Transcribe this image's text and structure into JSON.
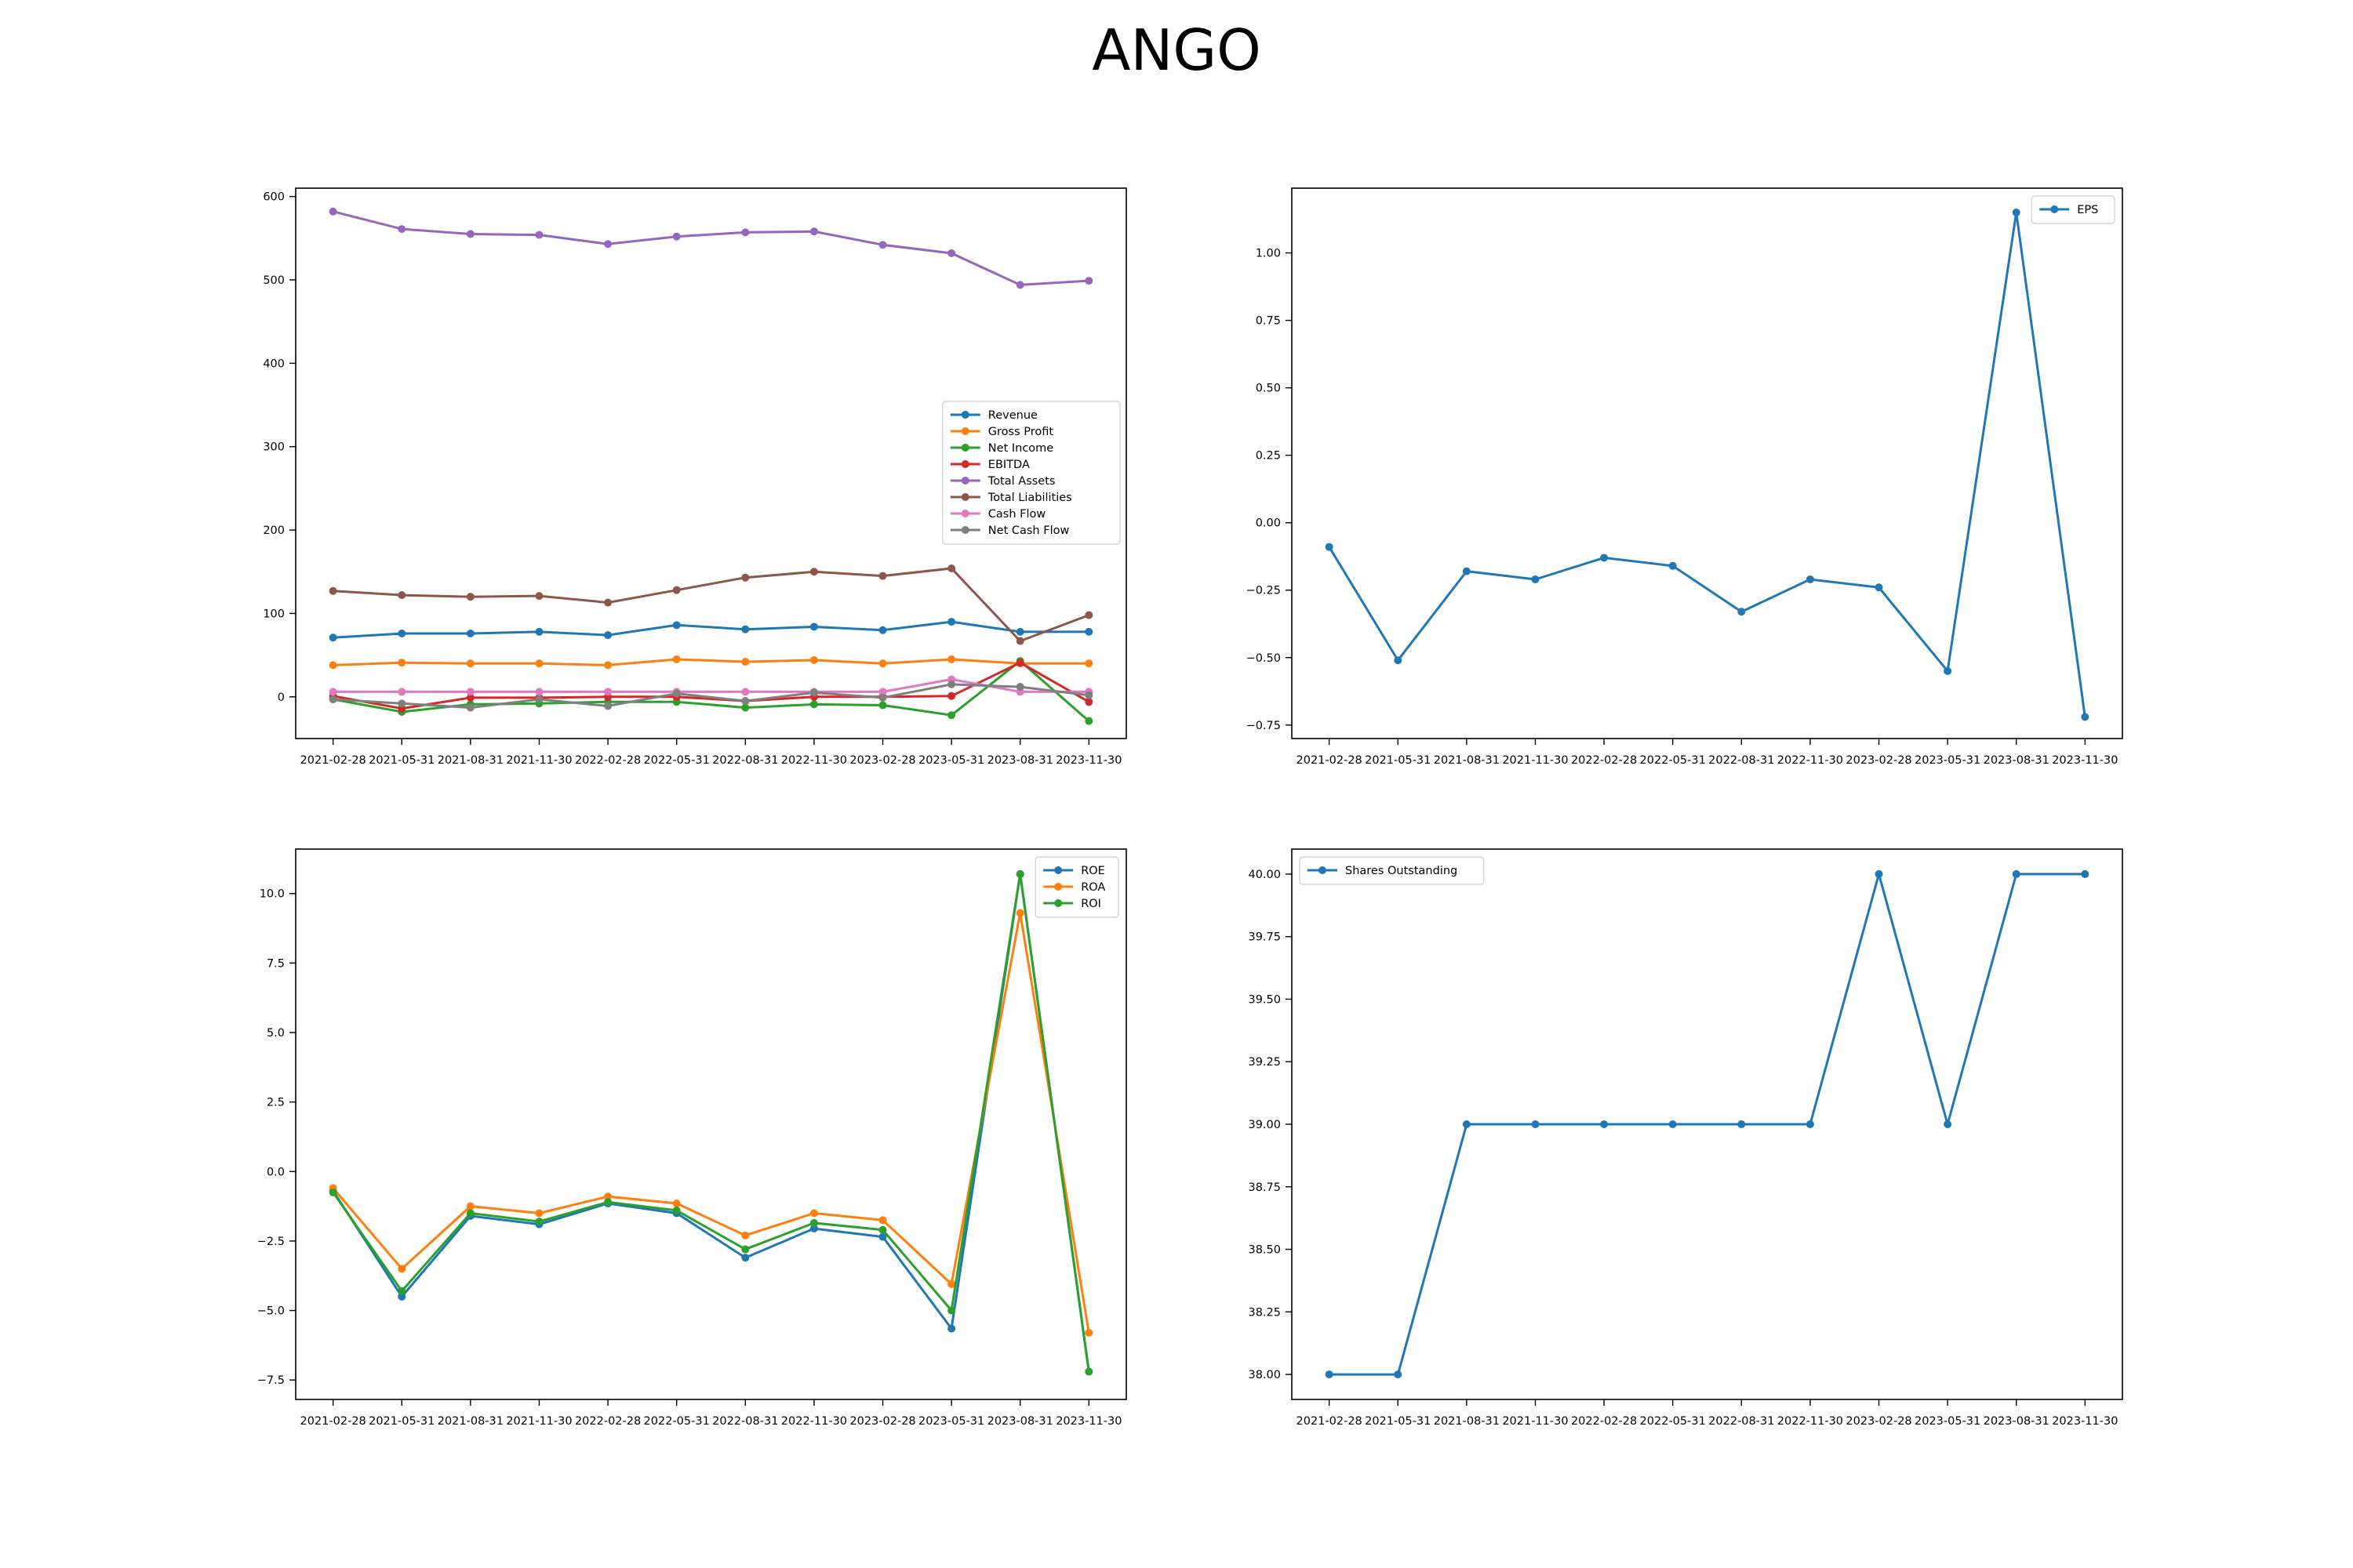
{
  "figure": {
    "title": "ANGO"
  },
  "chart_data": [
    {
      "type": "line",
      "x": [
        "2021-02-28",
        "2021-05-31",
        "2021-08-31",
        "2021-11-30",
        "2022-02-28",
        "2022-05-31",
        "2022-08-31",
        "2022-11-30",
        "2023-02-28",
        "2023-05-31",
        "2023-08-31",
        "2023-11-30"
      ],
      "ylim": [
        -50,
        610
      ],
      "yticks": [
        0,
        100,
        200,
        300,
        400,
        500,
        600
      ],
      "ytick_labels": [
        "0",
        "100",
        "200",
        "300",
        "400",
        "500",
        "600"
      ],
      "legend_position": "center-right",
      "series": [
        {
          "name": "Revenue",
          "color": "#1f77b4",
          "values": [
            71,
            76,
            76,
            78,
            74,
            86,
            81,
            84,
            80,
            90,
            78,
            78
          ]
        },
        {
          "name": "Gross Profit",
          "color": "#ff7f0e",
          "values": [
            38,
            41,
            40,
            40,
            38,
            45,
            42,
            44,
            40,
            45,
            40,
            40
          ]
        },
        {
          "name": "Net Income",
          "color": "#2ca02c",
          "values": [
            -3,
            -18,
            -9,
            -8,
            -6,
            -6,
            -13,
            -9,
            -10,
            -22,
            43,
            -29
          ]
        },
        {
          "name": "EBITDA",
          "color": "#d62728",
          "values": [
            1,
            -14,
            -1,
            -1,
            0,
            0,
            -5,
            0,
            0,
            1,
            41,
            -6
          ]
        },
        {
          "name": "Total Assets",
          "color": "#9467bd",
          "values": [
            582,
            561,
            555,
            554,
            543,
            552,
            557,
            558,
            542,
            532,
            494,
            499
          ]
        },
        {
          "name": "Total Liabilities",
          "color": "#8c564b",
          "values": [
            127,
            122,
            120,
            121,
            113,
            128,
            143,
            150,
            145,
            154,
            67,
            98
          ]
        },
        {
          "name": "Cash Flow",
          "color": "#e377c2",
          "values": [
            6,
            6,
            6,
            6,
            6,
            6,
            6,
            6,
            6,
            21,
            6,
            6
          ]
        },
        {
          "name": "Net Cash Flow",
          "color": "#7f7f7f",
          "values": [
            -3,
            -8,
            -13,
            -3,
            -11,
            4,
            -5,
            5,
            -1,
            15,
            12,
            2
          ]
        }
      ]
    },
    {
      "type": "line",
      "x": [
        "2021-02-28",
        "2021-05-31",
        "2021-08-31",
        "2021-11-30",
        "2022-02-28",
        "2022-05-31",
        "2022-08-31",
        "2022-11-30",
        "2023-02-28",
        "2023-05-31",
        "2023-08-31",
        "2023-11-30"
      ],
      "ylim": [
        -0.8,
        1.24
      ],
      "yticks": [
        -0.75,
        -0.5,
        -0.25,
        0,
        0.25,
        0.5,
        0.75,
        1.0
      ],
      "ytick_labels": [
        "−0.75",
        "−0.50",
        "−0.25",
        "0.00",
        "0.25",
        "0.50",
        "0.75",
        "1.00"
      ],
      "legend_position": "top-right",
      "series": [
        {
          "name": "EPS",
          "color": "#1f77b4",
          "values": [
            -0.09,
            -0.51,
            -0.18,
            -0.21,
            -0.13,
            -0.16,
            -0.33,
            -0.21,
            -0.24,
            -0.55,
            1.15,
            -0.72
          ]
        }
      ]
    },
    {
      "type": "line",
      "x": [
        "2021-02-28",
        "2021-05-31",
        "2021-08-31",
        "2021-11-30",
        "2022-02-28",
        "2022-05-31",
        "2022-08-31",
        "2022-11-30",
        "2023-02-28",
        "2023-05-31",
        "2023-08-31",
        "2023-11-30"
      ],
      "ylim": [
        -8.2,
        11.6
      ],
      "yticks": [
        -7.5,
        -5,
        -2.5,
        0,
        2.5,
        5,
        7.5,
        10
      ],
      "ytick_labels": [
        "−7.5",
        "−5.0",
        "−2.5",
        "0.0",
        "2.5",
        "5.0",
        "7.5",
        "10.0"
      ],
      "legend_position": "top-right",
      "series": [
        {
          "name": "ROE",
          "color": "#1f77b4",
          "values": [
            -0.7,
            -4.5,
            -1.6,
            -1.9,
            -1.15,
            -1.5,
            -3.1,
            -2.05,
            -2.35,
            -5.65,
            10.7,
            -7.2
          ]
        },
        {
          "name": "ROA",
          "color": "#ff7f0e",
          "values": [
            -0.6,
            -3.5,
            -1.25,
            -1.5,
            -0.9,
            -1.15,
            -2.3,
            -1.5,
            -1.75,
            -4.05,
            9.3,
            -5.8
          ]
        },
        {
          "name": "ROI",
          "color": "#2ca02c",
          "values": [
            -0.75,
            -4.3,
            -1.5,
            -1.8,
            -1.1,
            -1.4,
            -2.8,
            -1.85,
            -2.1,
            -5.0,
            10.7,
            -7.2
          ]
        }
      ]
    },
    {
      "type": "line",
      "x": [
        "2021-02-28",
        "2021-05-31",
        "2021-08-31",
        "2021-11-30",
        "2022-02-28",
        "2022-05-31",
        "2022-08-31",
        "2022-11-30",
        "2023-02-28",
        "2023-05-31",
        "2023-08-31",
        "2023-11-30"
      ],
      "ylim": [
        37.9,
        40.1
      ],
      "yticks": [
        38.0,
        38.25,
        38.5,
        38.75,
        39.0,
        39.25,
        39.5,
        39.75,
        40.0
      ],
      "ytick_labels": [
        "38.00",
        "38.25",
        "38.50",
        "38.75",
        "39.00",
        "39.25",
        "39.50",
        "39.75",
        "40.00"
      ],
      "legend_position": "top-left",
      "series": [
        {
          "name": "Shares Outstanding",
          "color": "#1f77b4",
          "values": [
            38,
            38,
            39,
            39,
            39,
            39,
            39,
            39,
            40,
            39,
            40,
            40
          ]
        }
      ]
    }
  ]
}
